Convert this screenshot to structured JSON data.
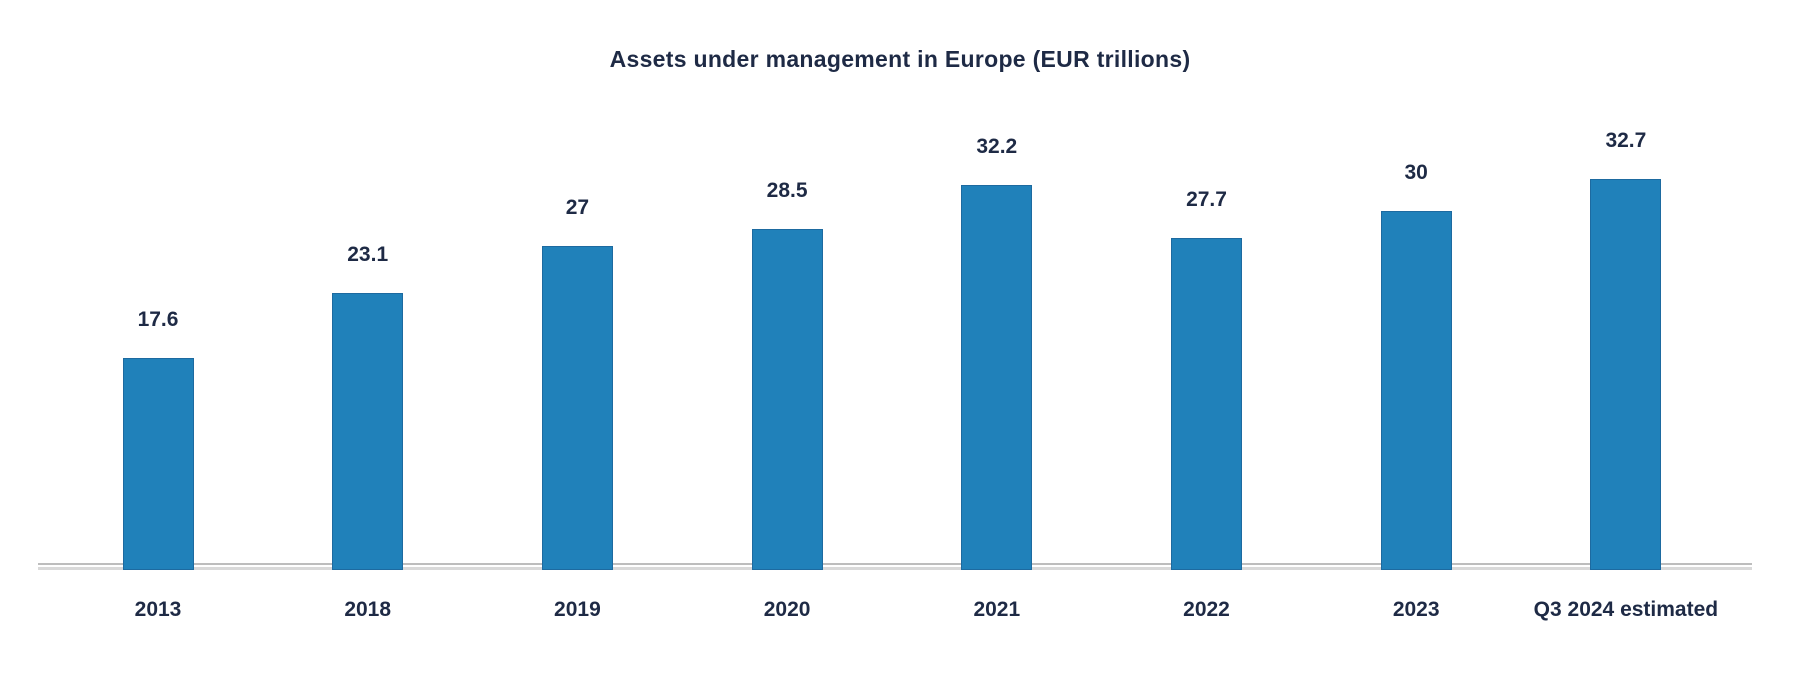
{
  "title": "Assets under management in Europe (EUR trillions)",
  "colors": {
    "bar_fill": "#2081BA",
    "bar_border": "#1D6AA0",
    "text": "#1E2A45",
    "axis_line": "#D9D9D9"
  },
  "chart_data": {
    "type": "bar",
    "title": "Assets under management in Europe (EUR trillions)",
    "categories": [
      "2013",
      "2018",
      "2019",
      "2020",
      "2021",
      "2022",
      "2023",
      "Q3 2024 estimated"
    ],
    "values": [
      17.6,
      23.1,
      27,
      28.5,
      32.2,
      27.7,
      30,
      32.7
    ],
    "value_labels": [
      "17.6",
      "23.1",
      "27",
      "28.5",
      "32.2",
      "27.7",
      "30",
      "32.7"
    ],
    "xlabel": "",
    "ylabel": "",
    "ylim": [
      0,
      35
    ],
    "grid": false,
    "legend": false,
    "value_labels_shown": true,
    "axis_shown": "x-only"
  }
}
